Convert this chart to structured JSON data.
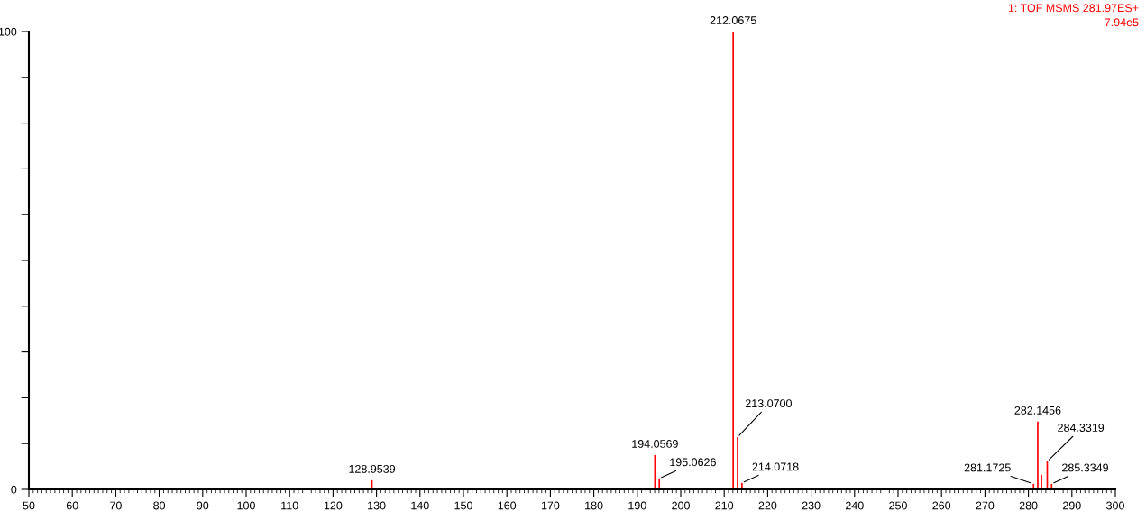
{
  "chart_data": {
    "type": "bar",
    "x": [
      128.9539,
      194.0569,
      195.0626,
      212.0675,
      213.07,
      214.0718,
      281.1725,
      282.1456,
      283.0,
      284.3319,
      285.3349
    ],
    "series": [
      {
        "color": "#ff0000",
        "values": [
          2,
          7.5,
          2.4,
          100,
          11.4,
          1.4,
          1.2,
          14.8,
          3.2,
          6.1,
          1.2
        ]
      }
    ],
    "xlim": [
      50,
      300
    ],
    "xticks": [
      50,
      60,
      70,
      80,
      90,
      100,
      110,
      120,
      130,
      140,
      150,
      160,
      170,
      180,
      190,
      200,
      210,
      220,
      230,
      240,
      250,
      260,
      270,
      280,
      290,
      300
    ],
    "ylim": [
      0,
      100
    ],
    "yticks": [
      0,
      {
        "value": 10,
        "label": null
      },
      {
        "value": 20,
        "label": null
      },
      {
        "value": 30,
        "label": null
      },
      {
        "value": 40,
        "label": null
      },
      {
        "value": 50,
        "label": null
      },
      {
        "value": 60,
        "label": null
      },
      {
        "value": 70,
        "label": null
      },
      {
        "value": 80,
        "label": null
      },
      {
        "value": 90,
        "label": null
      },
      100
    ],
    "grid": false,
    "annotations": [
      {
        "text": "128.9539",
        "x": 128.9539,
        "y": 2
      },
      {
        "text": "194.0569",
        "x": 194.0569,
        "y": 7.5
      },
      {
        "text": "195.0626",
        "x": 195.0626,
        "y": 2.4
      },
      {
        "text": "212.0675",
        "x": 212.0675,
        "y": 100
      },
      {
        "text": "213.0700",
        "x": 213.07,
        "y": 11.4
      },
      {
        "text": "214.0718",
        "x": 214.0718,
        "y": 1.4
      },
      {
        "text": "281.1725",
        "x": 281.1725,
        "y": 1.2
      },
      {
        "text": "282.1456",
        "x": 282.1456,
        "y": 14.8
      },
      {
        "text": "284.3319",
        "x": 284.3319,
        "y": 6.1
      },
      {
        "text": "285.3349",
        "x": 285.3349,
        "y": 1.2
      },
      "1: TOF MSMS 281.97ES+",
      "7.94e5"
    ]
  }
}
